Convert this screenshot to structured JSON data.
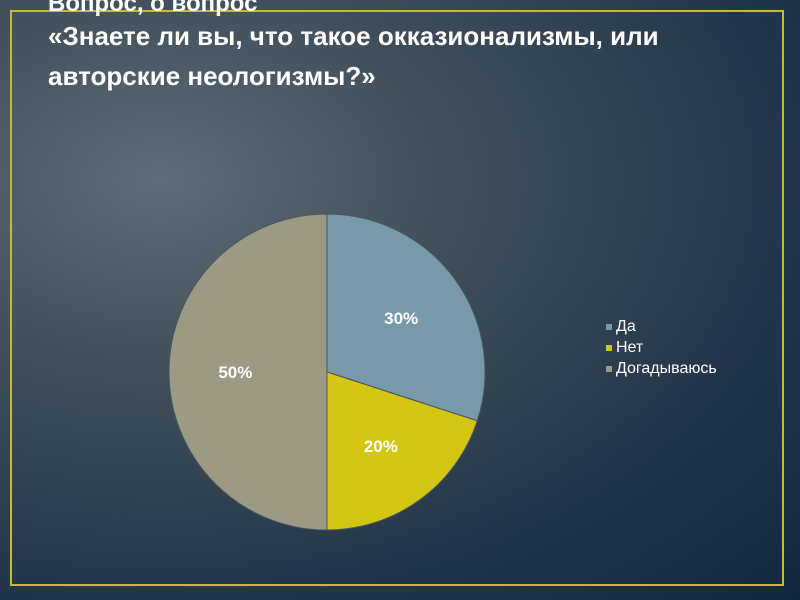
{
  "slide": {
    "title_cut_text": "Вопрос, о вопрос",
    "title": "«Знаете ли вы, что такое окказионализмы, или авторские неологизмы?»"
  },
  "chart_data": {
    "type": "pie",
    "categories": [
      "Да",
      "Нет",
      "Догадываюсь"
    ],
    "values": [
      30,
      20,
      50
    ],
    "data_labels": [
      "30%",
      "20%",
      "50%"
    ],
    "colors": [
      "#7799a8",
      "#d2c613",
      "#9c9985"
    ],
    "legend_placement": "right",
    "start_angle": "12 o'clock, clockwise"
  },
  "theme": {
    "frame_color": "#c8b832",
    "text_color": "#ffffff"
  }
}
